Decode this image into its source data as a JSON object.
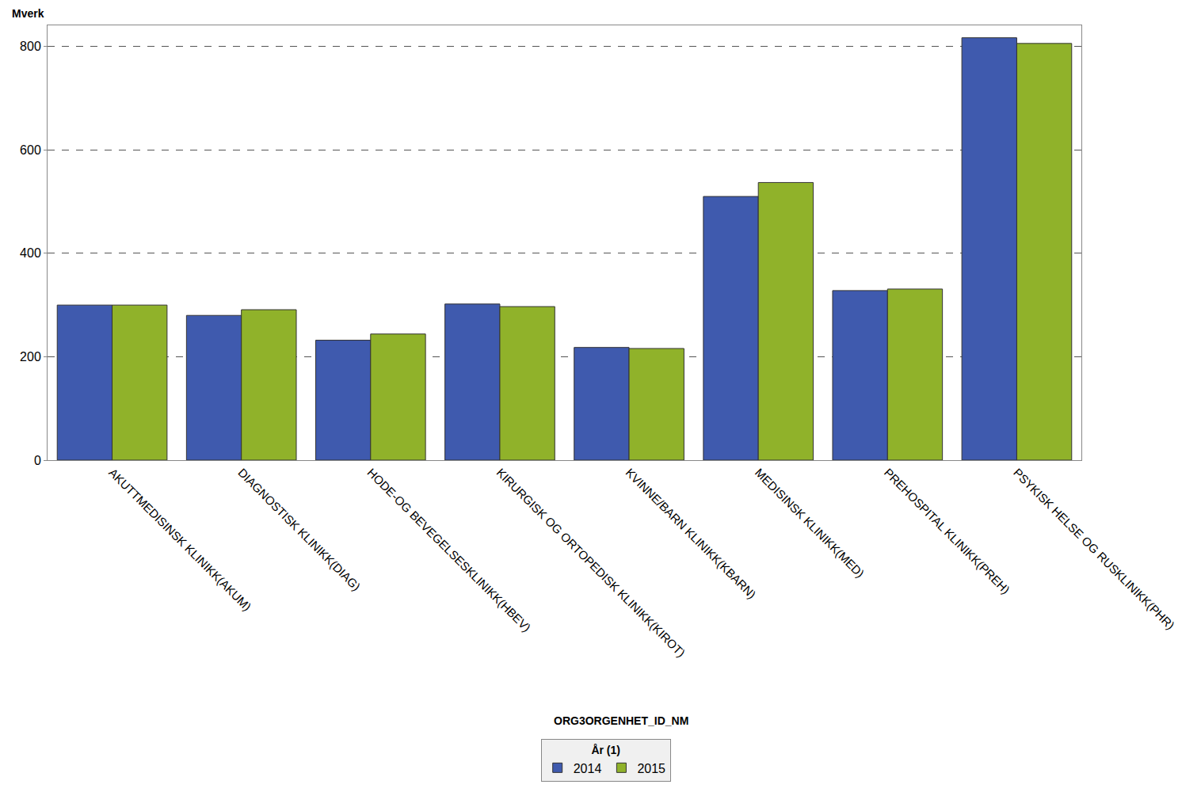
{
  "chart_data": {
    "type": "bar",
    "ylabel": "Mverk",
    "xlabel": "ORG3ORGENHET_ID_NM",
    "legend_title": "År (1)",
    "categories": [
      "AKUTTMEDISINSK KLINIKK(AKUM)",
      "DIAGNOSTISK KLINIKK(DIAG)",
      "HODE-OG BEVEGELSESKLINIKK(HBEV)",
      "KIRURGISK OG ORTOPEDISK KLINIKK(KIROT)",
      "KVINNE/BARN KLINIKK(KBARN)",
      "MEDISINSK KLINIKK(MED)",
      "PREHOSPITAL KLINIKK(PREH)",
      "PSYKISK HELSE OG RUSKLINIKK(PHR)"
    ],
    "series": [
      {
        "name": "2014",
        "color": "#3f5aae",
        "values": [
          300,
          280,
          232,
          302,
          218,
          510,
          328,
          817
        ]
      },
      {
        "name": "2015",
        "color": "#90b22a",
        "values": [
          300,
          291,
          244,
          297,
          216,
          537,
          331,
          806
        ]
      }
    ],
    "ylim": [
      0,
      841
    ],
    "yticks": [
      0,
      200,
      400,
      600,
      800
    ],
    "grid": true,
    "legend": "bottom"
  }
}
